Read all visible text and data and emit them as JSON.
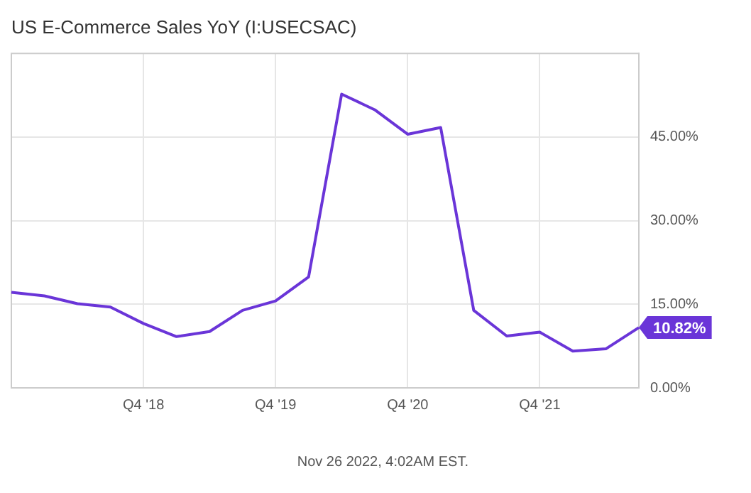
{
  "chart_data": {
    "type": "line",
    "title": "US E-Commerce Sales YoY (I:USECSAC)",
    "categories": [
      null,
      null,
      null,
      null,
      "Q4 '18",
      null,
      null,
      null,
      "Q4 '19",
      null,
      null,
      null,
      "Q4 '20",
      null,
      null,
      null,
      "Q4 '21",
      null,
      null,
      null
    ],
    "series": [
      {
        "color": "#6a35d8",
        "values": [
          17.15,
          16.5,
          15.1,
          14.5,
          11.55,
          9.2,
          10.1,
          13.9,
          15.6,
          19.9,
          52.7,
          49.9,
          45.5,
          46.7,
          13.9,
          9.3,
          10.0,
          6.6,
          7.0,
          10.82
        ],
        "value_labels": [
          null,
          null,
          null,
          null,
          null,
          null,
          null,
          null,
          null,
          null,
          null,
          null,
          null,
          null,
          null,
          null,
          null,
          null,
          null,
          "10.82%"
        ]
      }
    ],
    "ylim": [
      0,
      60
    ],
    "yticks": [
      {
        "value": 0,
        "label": "0.00%"
      },
      {
        "value": 15,
        "label": "15.00%"
      },
      {
        "value": 30,
        "label": "30.00%"
      },
      {
        "value": 45,
        "label": "45.00%"
      }
    ],
    "grid": true,
    "legend": false,
    "marker": "none",
    "line_style": "solid",
    "annotations": [
      "Nov 26 2022, 4:02AM EST."
    ]
  }
}
